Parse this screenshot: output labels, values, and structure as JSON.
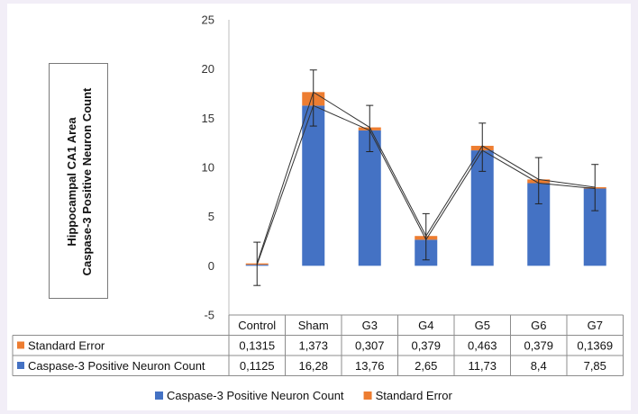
{
  "chart_data": {
    "type": "bar",
    "stacked": true,
    "ylabel_lines": [
      "Hippocampal CA1 Area",
      "Caspase-3 Positive Neuron Count"
    ],
    "categories": [
      "Control",
      "Sham",
      "G3",
      "G4",
      "G5",
      "G6",
      "G7"
    ],
    "series": [
      {
        "name": "Caspase-3 Positive Neuron Count",
        "values": [
          0.1125,
          16.28,
          13.76,
          2.65,
          11.73,
          8.4,
          7.85
        ],
        "labels": [
          "0,1125",
          "16,28",
          "13,76",
          "2,65",
          "11,73",
          "8,4",
          "7,85"
        ],
        "color": "#4472c4"
      },
      {
        "name": "Standard Error",
        "values": [
          0.1315,
          1.373,
          0.307,
          0.379,
          0.463,
          0.379,
          0.1369
        ],
        "labels": [
          "0,1315",
          "1,373",
          "0,307",
          "0,379",
          "0,463",
          "0,379",
          "0,1369"
        ],
        "color": "#ed7d31"
      }
    ],
    "error_bars": [
      {
        "top": 2.4,
        "bottom": -2.0
      },
      {
        "top": 19.9,
        "bottom": 14.2
      },
      {
        "top": 16.3,
        "bottom": 11.6
      },
      {
        "top": 5.3,
        "bottom": 0.6
      },
      {
        "top": 14.5,
        "bottom": 9.6
      },
      {
        "top": 11.0,
        "bottom": 6.3
      },
      {
        "top": 10.3,
        "bottom": 5.6
      }
    ],
    "ylim": [
      -5,
      25
    ],
    "yticks": [
      -5,
      0,
      5,
      10,
      15,
      20,
      25
    ],
    "grid": false,
    "legend_position": "bottom",
    "data_table": true
  }
}
